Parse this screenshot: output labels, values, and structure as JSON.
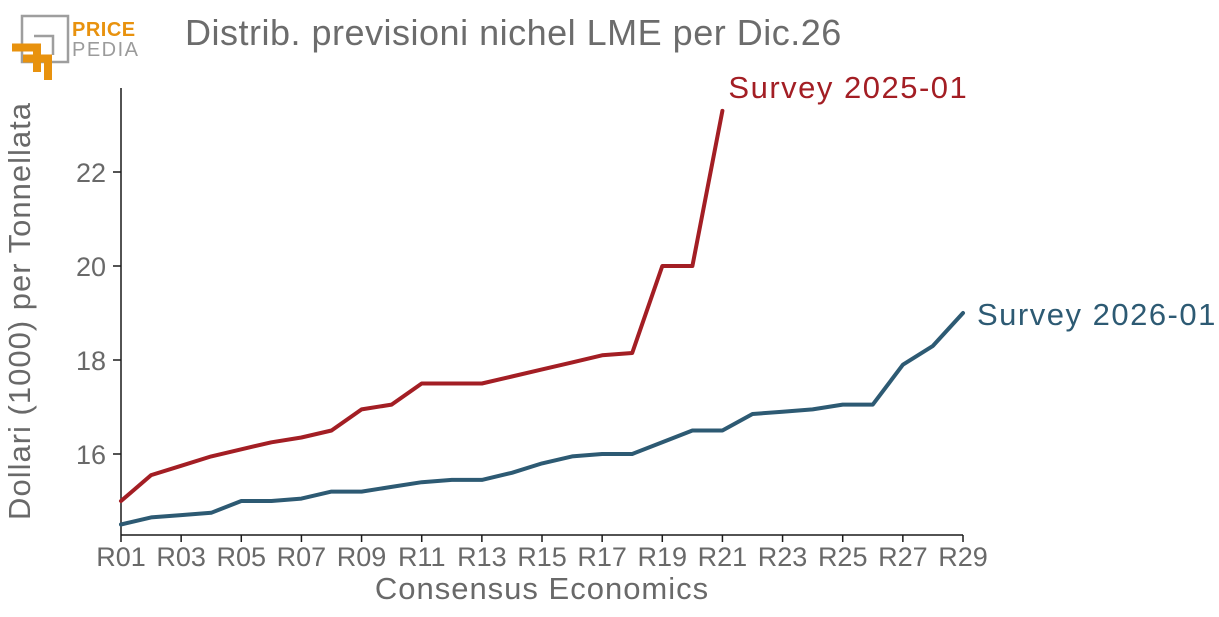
{
  "logo": {
    "line1": "PRICE",
    "line2": "PEDIA",
    "orange": "#E8920E",
    "gray": "#9B9B9B"
  },
  "title": "Distrib. previsioni nichel LME per Dic.26",
  "colors": {
    "title_text": "#6C6C6C",
    "axis_text": "#696969",
    "axis_line": "#1A1A1A",
    "background": "#FFFFFF",
    "series_2025": "#A31E24",
    "series_2026": "#2D5A73"
  },
  "chart_data": {
    "type": "line",
    "title": "Distrib. previsioni nichel LME per Dic.26",
    "xlabel": "Consensus Economics",
    "ylabel": "Dollari (1000) per Tonnellata",
    "categories": [
      "R01",
      "R02",
      "R03",
      "R04",
      "R05",
      "R06",
      "R07",
      "R08",
      "R09",
      "R10",
      "R11",
      "R12",
      "R13",
      "R14",
      "R15",
      "R16",
      "R17",
      "R18",
      "R19",
      "R20",
      "R21",
      "R22",
      "R23",
      "R24",
      "R25",
      "R26",
      "R27",
      "R28",
      "R29"
    ],
    "x_tick_labels": [
      "R01",
      "R03",
      "R05",
      "R07",
      "R09",
      "R11",
      "R13",
      "R15",
      "R17",
      "R19",
      "R21",
      "R23",
      "R25",
      "R27",
      "R29"
    ],
    "y_ticks": [
      16,
      18,
      20,
      22
    ],
    "ylim": [
      14.3,
      23.8
    ],
    "grid": false,
    "legend_position": "inline-end-of-line-labels",
    "series": [
      {
        "name": "Survey 2025-01",
        "color": "#A31E24",
        "values": [
          15.0,
          15.55,
          15.75,
          15.95,
          16.1,
          16.25,
          16.35,
          16.5,
          16.95,
          17.05,
          17.5,
          17.5,
          17.5,
          17.65,
          17.8,
          17.95,
          18.1,
          18.15,
          20.0,
          20.0,
          23.3
        ]
      },
      {
        "name": "Survey 2026-01",
        "color": "#2D5A73",
        "values": [
          14.5,
          14.65,
          14.7,
          14.75,
          15.0,
          15.0,
          15.05,
          15.2,
          15.2,
          15.3,
          15.4,
          15.45,
          15.45,
          15.6,
          15.8,
          15.95,
          16.0,
          16.0,
          16.25,
          16.5,
          16.5,
          16.85,
          16.9,
          16.95,
          17.05,
          17.05,
          17.9,
          18.3,
          19.0
        ]
      }
    ]
  }
}
